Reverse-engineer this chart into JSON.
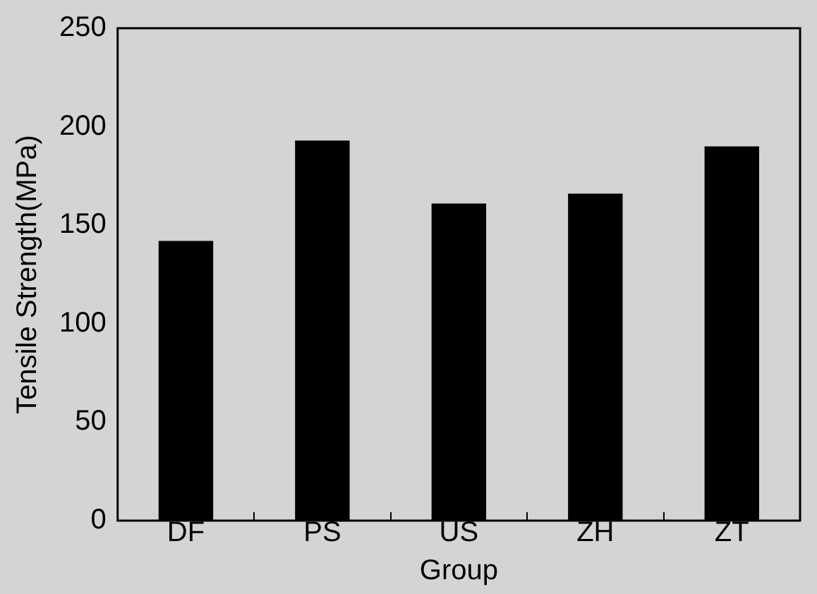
{
  "chart_data": {
    "type": "bar",
    "xlabel": "Group",
    "ylabel": "Tensile Strength(MPa)",
    "categories": [
      "DF",
      "PS",
      "US",
      "ZH",
      "ZT"
    ],
    "values": [
      142,
      193,
      161,
      166,
      190
    ],
    "color": "#000000",
    "ylim": [
      0,
      250
    ],
    "yticks": [
      0,
      50,
      100,
      150,
      200,
      250
    ],
    "grid": false,
    "legend": false
  }
}
